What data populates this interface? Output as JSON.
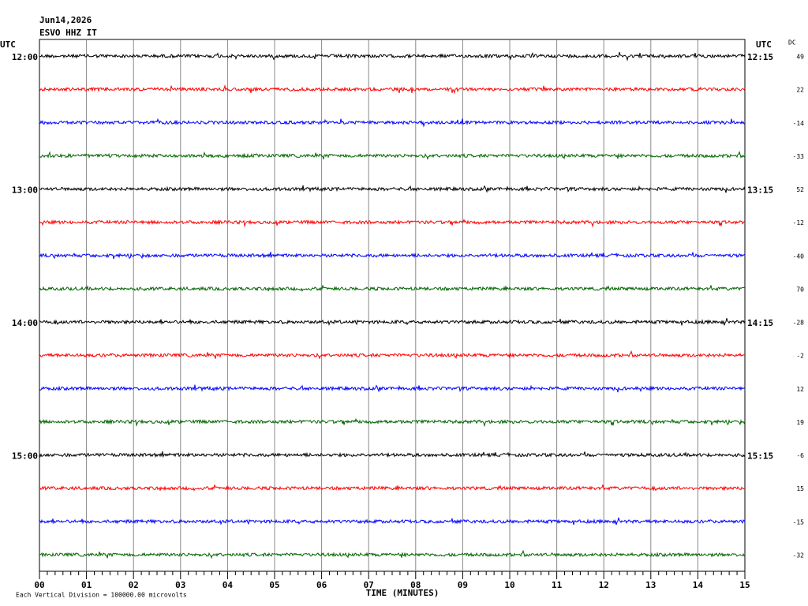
{
  "header": {
    "date": "Jun14,2026",
    "station": "ESVO HHZ IT"
  },
  "left_axis_title": "UTC",
  "right_axis_title": "UTC",
  "dc_title": "DC",
  "rows": [
    {
      "left": "12:00",
      "right": "12:15",
      "dc": 49,
      "color": "#000000"
    },
    {
      "dc": 22,
      "color": "#ff0000"
    },
    {
      "dc": -14,
      "color": "#0000ff"
    },
    {
      "dc": -33,
      "color": "#006400"
    },
    {
      "left": "13:00",
      "right": "13:15",
      "dc": 52,
      "color": "#000000"
    },
    {
      "dc": -12,
      "color": "#ff0000"
    },
    {
      "dc": -40,
      "color": "#0000ff"
    },
    {
      "dc": 70,
      "color": "#006400"
    },
    {
      "left": "14:00",
      "right": "14:15",
      "dc": -28,
      "color": "#000000"
    },
    {
      "dc": -2,
      "color": "#ff0000"
    },
    {
      "dc": 12,
      "color": "#0000ff"
    },
    {
      "dc": 19,
      "color": "#006400"
    },
    {
      "left": "15:00",
      "right": "15:15",
      "dc": -6,
      "color": "#000000"
    },
    {
      "dc": 15,
      "color": "#ff0000"
    },
    {
      "dc": -15,
      "color": "#0000ff"
    },
    {
      "dc": -32,
      "color": "#006400"
    }
  ],
  "x_axis": {
    "ticks": [
      "00",
      "01",
      "02",
      "03",
      "04",
      "05",
      "06",
      "07",
      "08",
      "09",
      "10",
      "11",
      "12",
      "13",
      "14",
      "15"
    ],
    "title": "TIME (MINUTES)"
  },
  "footer": "Each Vertical Division = 100000.00 microvolts"
}
